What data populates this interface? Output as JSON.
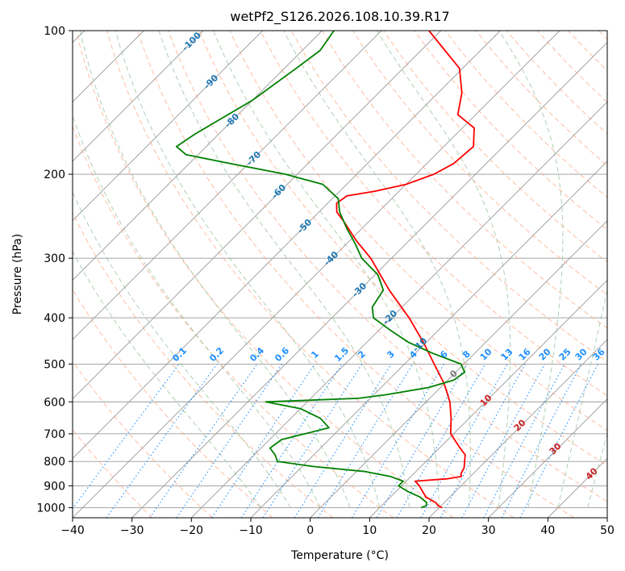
{
  "colors": {
    "temperature": "#ff0000",
    "dewpoint": "#008000",
    "isotherm": "#999999",
    "isobar": "#999999",
    "dry_adiabat": "#ffa07a",
    "moist_adiabat": "#8fbc8f",
    "mixing_ratio": "#1e90ff",
    "dry_label": "#cc2222",
    "moist_label": "#1f77b4",
    "mixing_label": "#1e90ff",
    "freezing_label": "#777777"
  },
  "chart_data": {
    "type": "line",
    "subtype": "skew-t log-p",
    "title": "wetPf2_S126.2026.108.10.39.R17",
    "xlabel": "Temperature (°C)",
    "ylabel": "Pressure (hPa)",
    "xlim": [
      -40,
      50
    ],
    "ylim": [
      1050,
      100
    ],
    "x_ticks": [
      -40,
      -30,
      -20,
      -10,
      0,
      10,
      20,
      30,
      40,
      50
    ],
    "x_tick_labels": [
      "−40",
      "−30",
      "−20",
      "−10",
      "0",
      "10",
      "20",
      "30",
      "40",
      "50"
    ],
    "y_ticks": [
      1000,
      900,
      800,
      700,
      600,
      500,
      400,
      300,
      200,
      100
    ],
    "y_tick_labels": [
      "1000",
      "900",
      "800",
      "700",
      "600",
      "500",
      "400",
      "300",
      "200",
      "100"
    ],
    "grid": true,
    "series": [
      {
        "name": "Temperature",
        "points": [
          [
            1000,
            20.5
          ],
          [
            990,
            19.5
          ],
          [
            975,
            18.5
          ],
          [
            950,
            16.0
          ],
          [
            925,
            14.5
          ],
          [
            900,
            13.0
          ],
          [
            880,
            11.5
          ],
          [
            870,
            16.5
          ],
          [
            860,
            18.5
          ],
          [
            850,
            18.0
          ],
          [
            825,
            17.5
          ],
          [
            800,
            16.5
          ],
          [
            775,
            15.5
          ],
          [
            750,
            13.5
          ],
          [
            700,
            9.5
          ],
          [
            650,
            7.0
          ],
          [
            600,
            4.0
          ],
          [
            550,
            0.0
          ],
          [
            500,
            -5.0
          ],
          [
            450,
            -10.5
          ],
          [
            400,
            -17.0
          ],
          [
            350,
            -25.0
          ],
          [
            300,
            -33.5
          ],
          [
            275,
            -39.0
          ],
          [
            250,
            -44.5
          ],
          [
            240,
            -47.0
          ],
          [
            230,
            -48.5
          ],
          [
            222,
            -48.0
          ],
          [
            217,
            -44.0
          ],
          [
            210,
            -40.0
          ],
          [
            200,
            -37.0
          ],
          [
            190,
            -35.5
          ],
          [
            175,
            -35.0
          ],
          [
            160,
            -38.0
          ],
          [
            150,
            -43.0
          ],
          [
            135,
            -46.0
          ],
          [
            120,
            -50.5
          ],
          [
            110,
            -56.0
          ],
          [
            100,
            -62.0
          ]
        ]
      },
      {
        "name": "Dewpoint",
        "points": [
          [
            1000,
            17.0
          ],
          [
            990,
            17.5
          ],
          [
            975,
            17.0
          ],
          [
            950,
            15.0
          ],
          [
            925,
            12.0
          ],
          [
            900,
            9.5
          ],
          [
            880,
            9.5
          ],
          [
            860,
            6.5
          ],
          [
            840,
            1.5
          ],
          [
            820,
            -8.0
          ],
          [
            800,
            -15.0
          ],
          [
            775,
            -16.5
          ],
          [
            750,
            -18.5
          ],
          [
            720,
            -18.0
          ],
          [
            700,
            -15.0
          ],
          [
            680,
            -12.0
          ],
          [
            650,
            -15.0
          ],
          [
            620,
            -20.0
          ],
          [
            600,
            -27.0
          ],
          [
            590,
            -12.0
          ],
          [
            580,
            -8.0
          ],
          [
            560,
            -2.0
          ],
          [
            540,
            1.0
          ],
          [
            520,
            1.5
          ],
          [
            500,
            -0.5
          ],
          [
            475,
            -7.0
          ],
          [
            450,
            -13.0
          ],
          [
            425,
            -18.0
          ],
          [
            400,
            -23.0
          ],
          [
            380,
            -25.0
          ],
          [
            350,
            -26.0
          ],
          [
            325,
            -29.5
          ],
          [
            300,
            -35.0
          ],
          [
            280,
            -38.5
          ],
          [
            260,
            -42.5
          ],
          [
            240,
            -46.5
          ],
          [
            225,
            -49.0
          ],
          [
            210,
            -54.0
          ],
          [
            200,
            -62.0
          ],
          [
            190,
            -73.0
          ],
          [
            182,
            -82.0
          ],
          [
            175,
            -85.0
          ],
          [
            165,
            -84.0
          ],
          [
            155,
            -82.5
          ],
          [
            140,
            -80.0
          ],
          [
            120,
            -78.0
          ],
          [
            110,
            -77.0
          ],
          [
            100,
            -78.0
          ]
        ]
      }
    ],
    "dry_adiabat_labels": [
      "10",
      "20",
      "30",
      "40"
    ],
    "moist_adiabat_labels": [
      "-100",
      "-90",
      "-80",
      "-70",
      "-60",
      "-50",
      "-40",
      "-30",
      "-20",
      "-10"
    ],
    "mixing_ratio_labels": [
      "0.1",
      "0.2",
      "0.4",
      "0.6",
      "1",
      "1.5",
      "2",
      "3",
      "4",
      "6",
      "8",
      "10",
      "13",
      "16",
      "20",
      "25",
      "30",
      "36"
    ],
    "freezing_label": "0"
  }
}
